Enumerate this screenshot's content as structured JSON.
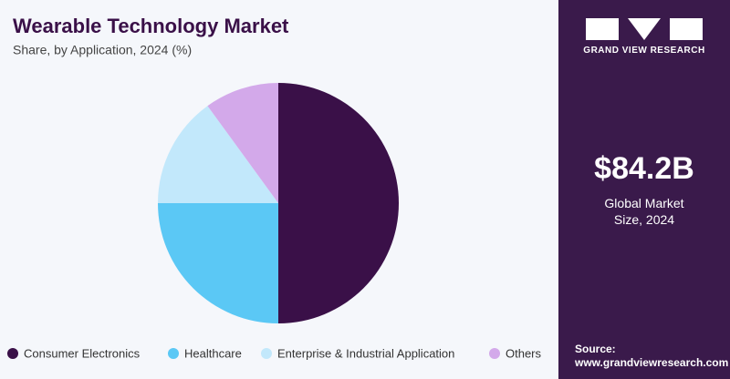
{
  "chart_data": {
    "type": "pie",
    "title": "Wearable Technology Market",
    "subtitle": "Share, by Application, 2024 (%)",
    "categories": [
      "Consumer Electronics",
      "Healthcare",
      "Enterprise & Industrial Application",
      "Others"
    ],
    "values": [
      50,
      25,
      15,
      10
    ],
    "colors": [
      "#3a1048",
      "#5bc8f5",
      "#c2e8fb",
      "#d3a9ea"
    ],
    "legend": "bottom"
  },
  "panel": {
    "logo_text": "GRAND VIEW RESEARCH",
    "market_size": "$84.2B",
    "market_size_label": "Global Market Size, 2024",
    "source_label": "Source:",
    "source_url": "www.grandviewresearch.com"
  }
}
